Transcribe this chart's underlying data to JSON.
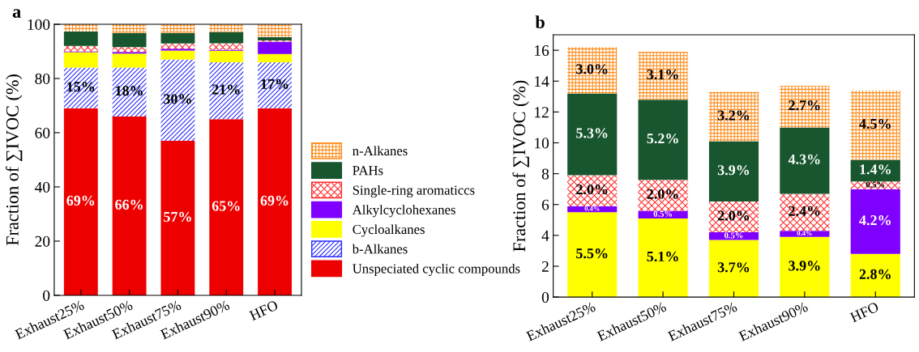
{
  "chart_data": [
    {
      "type": "bar",
      "title": "a",
      "ylabel": "Fraction of ∑IVOC (%)",
      "stacked": true,
      "legend": "right",
      "categories": [
        "Exhaust25%",
        "Exhaust50%",
        "Exhaust75%",
        "Exhaust90%",
        "HFO"
      ],
      "ylim": [
        0,
        100
      ],
      "yticks": [
        0,
        20,
        40,
        60,
        80,
        100
      ],
      "series": [
        {
          "name": "Unspeciated cyclic compounds",
          "color": "#ee0000",
          "values": [
            69,
            66,
            57,
            65,
            69
          ],
          "value_labels": [
            "69%",
            "66%",
            "57%",
            "65%",
            "69%"
          ]
        },
        {
          "name": "b-Alkanes",
          "color": "#2a2aff",
          "values": [
            15,
            18,
            30,
            21,
            17
          ],
          "value_labels": [
            "15%",
            "18%",
            "30%",
            "21%",
            "17%"
          ]
        },
        {
          "name": "Cycloalkanes",
          "color": "#ffff00",
          "values": [
            5.7,
            5.2,
            3.3,
            4.2,
            3
          ]
        },
        {
          "name": "Alkylcyclohexanes",
          "color": "#8000ff",
          "values": [
            0.3,
            0.6,
            0.7,
            0.4,
            4.6
          ]
        },
        {
          "name": "Single-ring aromaticcs",
          "color": "#ff2a2a",
          "values": [
            2,
            1.8,
            1.9,
            2.4,
            0.4
          ]
        },
        {
          "name": "PAHs",
          "color": "#17562e",
          "values": [
            5.3,
            5.2,
            3.9,
            4.2,
            1.3
          ]
        },
        {
          "name": "n-Alkanes",
          "color": "#ff8c1a",
          "values": [
            2.7,
            3.2,
            3.2,
            2.8,
            4.7
          ]
        }
      ]
    },
    {
      "type": "bar",
      "title": "b",
      "ylabel": "Fraction of ∑IVOC (%)",
      "stacked": true,
      "categories": [
        "Exhaust25%",
        "Exhaust50%",
        "Exhaust75%",
        "Exhaust90%",
        "HFO"
      ],
      "ylim": [
        0,
        17
      ],
      "yticks": [
        0,
        2,
        4,
        6,
        8,
        10,
        12,
        14,
        16
      ],
      "series": [
        {
          "color": "#ffff00",
          "values": [
            5.5,
            5.1,
            3.7,
            3.9,
            2.8
          ],
          "value_labels": [
            "5.5%",
            "5.1%",
            "3.7%",
            "3.9%",
            "2.8%"
          ]
        },
        {
          "color": "#8000ff",
          "values": [
            0.4,
            0.5,
            0.5,
            0.4,
            4.2
          ],
          "value_labels": [
            "0.4%",
            "0.5%",
            "0.5%",
            "0.4%",
            "4.2%"
          ]
        },
        {
          "color": "#ff2a2a",
          "values": [
            2.0,
            2.0,
            2.0,
            2.4,
            0.5
          ],
          "value_labels": [
            "2.0%",
            "2.0%",
            "2.0%",
            "2.4%",
            "0.5%"
          ]
        },
        {
          "color": "#17562e",
          "values": [
            5.3,
            5.2,
            3.9,
            4.3,
            1.4
          ],
          "value_labels": [
            "5.3%",
            "5.2%",
            "3.9%",
            "4.3%",
            "1.4%"
          ]
        },
        {
          "color": "#ff8c1a",
          "values": [
            3.0,
            3.1,
            3.2,
            2.7,
            4.5
          ],
          "value_labels": [
            "3.0%",
            "3.1%",
            "3.2%",
            "2.7%",
            "4.5%"
          ]
        }
      ]
    }
  ]
}
